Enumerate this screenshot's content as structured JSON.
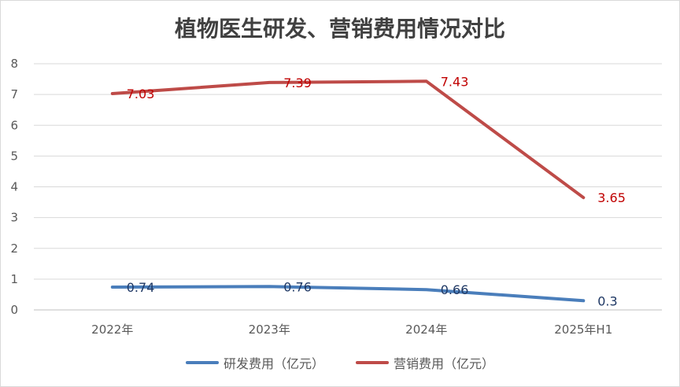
{
  "chart_data": {
    "type": "line",
    "title": "植物医生研发、营销费用情况对比",
    "categories": [
      "2022年",
      "2023年",
      "2024年",
      "2025年H1"
    ],
    "ylim": [
      0,
      8
    ],
    "yticks": [
      "0",
      "1",
      "2",
      "3",
      "4",
      "5",
      "6",
      "7",
      "8"
    ],
    "grid": true,
    "legend_position": "bottom",
    "series": [
      {
        "name": "研发费用（亿元）",
        "values": [
          0.74,
          0.76,
          0.66,
          0.3
        ],
        "labels": [
          "0.74",
          "0.76",
          "0.66",
          "0.3"
        ],
        "color": "#4a7ebb",
        "label_color": "#1f3864"
      },
      {
        "name": "营销费用（亿元）",
        "values": [
          7.03,
          7.39,
          7.43,
          3.65
        ],
        "labels": [
          "7.03",
          "7.39",
          "7.43",
          "3.65"
        ],
        "color": "#be4b48",
        "label_color": "#c00000"
      }
    ]
  }
}
